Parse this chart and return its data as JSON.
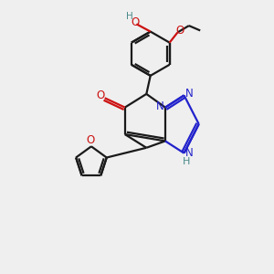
{
  "bg_color": "#efefef",
  "bond_color": "#1a1a1a",
  "n_color": "#2222cc",
  "o_color": "#cc1111",
  "h_color": "#4a8a8a",
  "line_width": 1.6,
  "font_size": 8.5,
  "figsize": [
    3.0,
    3.0
  ],
  "dpi": 100,
  "xlim": [
    0,
    10
  ],
  "ylim": [
    0,
    10
  ]
}
